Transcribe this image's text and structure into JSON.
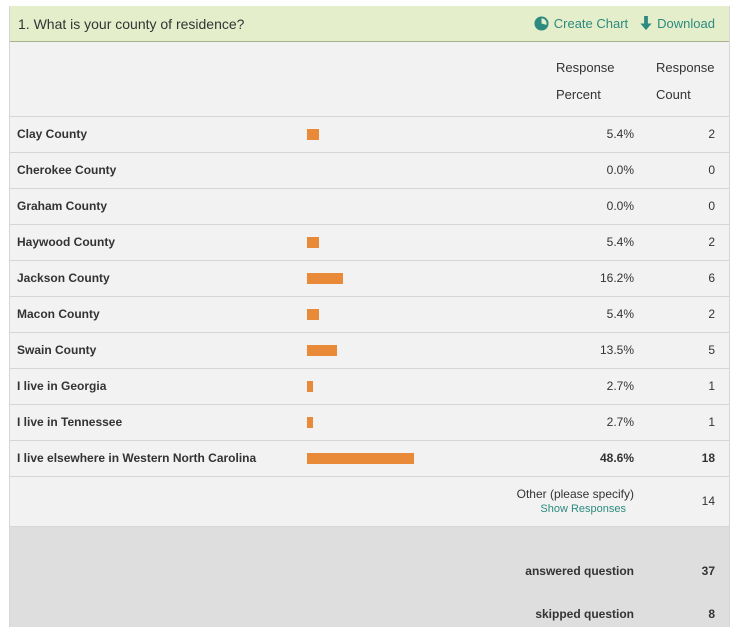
{
  "question": {
    "title": "1. What is your county of residence?",
    "create_chart_label": "Create Chart",
    "download_label": "Download"
  },
  "columns": {
    "percent_line1": "Response",
    "percent_line2": "Percent",
    "count_line1": "Response",
    "count_line2": "Count"
  },
  "rows": [
    {
      "label": "Clay County",
      "percent": "5.4%",
      "count": "2"
    },
    {
      "label": "Cherokee County",
      "percent": "0.0%",
      "count": "0"
    },
    {
      "label": "Graham County",
      "percent": "0.0%",
      "count": "0"
    },
    {
      "label": "Haywood County",
      "percent": "5.4%",
      "count": "2"
    },
    {
      "label": "Jackson County",
      "percent": "16.2%",
      "count": "6"
    },
    {
      "label": "Macon County",
      "percent": "5.4%",
      "count": "2"
    },
    {
      "label": "Swain County",
      "percent": "13.5%",
      "count": "5"
    },
    {
      "label": "I live in Georgia",
      "percent": "2.7%",
      "count": "1"
    },
    {
      "label": "I live in Tennessee",
      "percent": "2.7%",
      "count": "1"
    },
    {
      "label": "I live elsewhere in Western North Carolina",
      "percent": "48.6%",
      "count": "18"
    }
  ],
  "bar_fractions": [
    0.054,
    0.0,
    0.0,
    0.054,
    0.162,
    0.054,
    0.135,
    0.027,
    0.027,
    0.486
  ],
  "other": {
    "label": "Other (please specify)",
    "link": "Show Responses",
    "count": "14"
  },
  "summary": {
    "answered_label": "answered question",
    "answered_value": "37",
    "skipped_label": "skipped question",
    "skipped_value": "8"
  },
  "colors": {
    "bar": "#e88a37",
    "header_bg": "#e5eecb",
    "accent": "#2c8a7e",
    "summary_bg": "#dedede"
  },
  "icons": {
    "create_chart": "pie-chart-icon",
    "download": "download-arrow-icon"
  }
}
